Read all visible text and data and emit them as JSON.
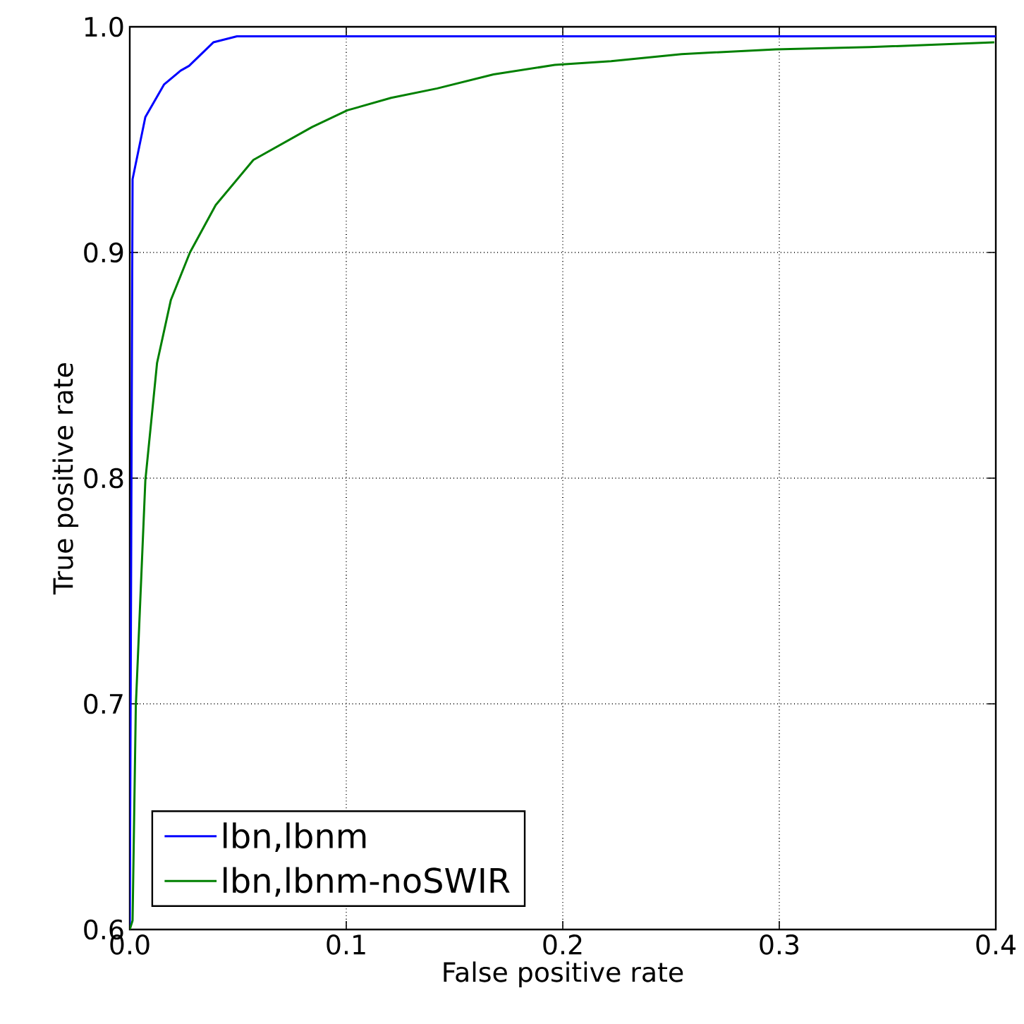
{
  "chart_data": {
    "type": "line",
    "xlabel": "False positive rate",
    "ylabel": "True positive rate",
    "xlim": [
      0,
      0.4
    ],
    "ylim": [
      0.6,
      1.0
    ],
    "xticks": [
      {
        "value": 0,
        "label": "0.0"
      },
      0.1,
      0.2,
      0.3,
      0.4
    ],
    "yticks": [
      0.6,
      0.7,
      0.8,
      0.9,
      {
        "value": 1.0,
        "label": "1.0"
      }
    ],
    "grid": true,
    "legend": "bottom left",
    "line_style": "solid",
    "marker": "none",
    "series": [
      {
        "name": "lbn,lbnm",
        "color": "#0000ff",
        "x": [
          0,
          0.0013,
          0.0072,
          0.0158,
          0.0235,
          0.0274,
          0.0386,
          0.0495,
          0.4
        ],
        "values": [
          0.6,
          0.9325,
          0.96,
          0.9744,
          0.9806,
          0.9827,
          0.9931,
          0.9958,
          0.9958
        ]
      },
      {
        "name": "lbn,lbnm-noSWIR",
        "color": "#008000",
        "x": [
          0,
          0.0013,
          0.0028,
          0.0072,
          0.0126,
          0.019,
          0.0278,
          0.0397,
          0.0571,
          0.0842,
          0.1005,
          0.1207,
          0.142,
          0.168,
          0.1963,
          0.2223,
          0.2549,
          0.2984,
          0.3418,
          0.3993
        ],
        "values": [
          0.6,
          0.604,
          0.699,
          0.799,
          0.851,
          0.879,
          0.9,
          0.921,
          0.941,
          0.9556,
          0.963,
          0.9685,
          0.9727,
          0.9789,
          0.9831,
          0.9848,
          0.9879,
          0.99,
          0.991,
          0.9931
        ]
      }
    ]
  }
}
